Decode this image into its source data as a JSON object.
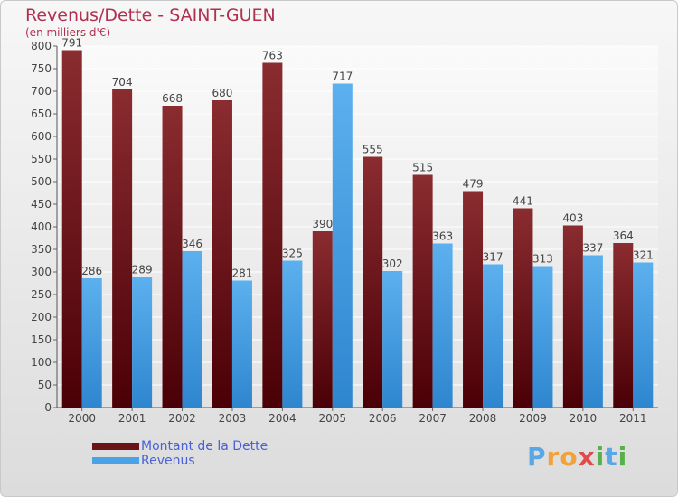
{
  "title": "Revenus/Dette - SAINT-GUEN",
  "subtitle": "(en milliers d'€)",
  "logo": {
    "letters": [
      "P",
      "r",
      "o",
      "x",
      "i",
      "t",
      "i"
    ],
    "colors": [
      "#5aa7e6",
      "#f2a23a",
      "#f2a23a",
      "#e54848",
      "#59b04a",
      "#5aa7e6",
      "#59b04a"
    ]
  },
  "chart_data": {
    "type": "bar",
    "title": "Revenus/Dette - SAINT-GUEN",
    "ylabel": "(en milliers d'€)",
    "xlabel": "",
    "categories": [
      "2000",
      "2001",
      "2002",
      "2003",
      "2004",
      "2005",
      "2006",
      "2007",
      "2008",
      "2009",
      "2010",
      "2011"
    ],
    "series": [
      {
        "name": "Montant de la Dette",
        "color": "#7a1c22",
        "values": [
          791,
          704,
          668,
          680,
          763,
          390,
          555,
          515,
          479,
          441,
          403,
          364
        ]
      },
      {
        "name": "Revenus",
        "color": "#4aa3e4",
        "values": [
          286,
          289,
          346,
          281,
          325,
          717,
          302,
          363,
          317,
          313,
          337,
          321
        ]
      }
    ],
    "ylim": [
      0,
      800
    ],
    "yticks": [
      0,
      50,
      100,
      150,
      200,
      250,
      300,
      350,
      400,
      450,
      500,
      550,
      600,
      650,
      700,
      750,
      800
    ],
    "grid": true,
    "legend": "bottom-left"
  }
}
